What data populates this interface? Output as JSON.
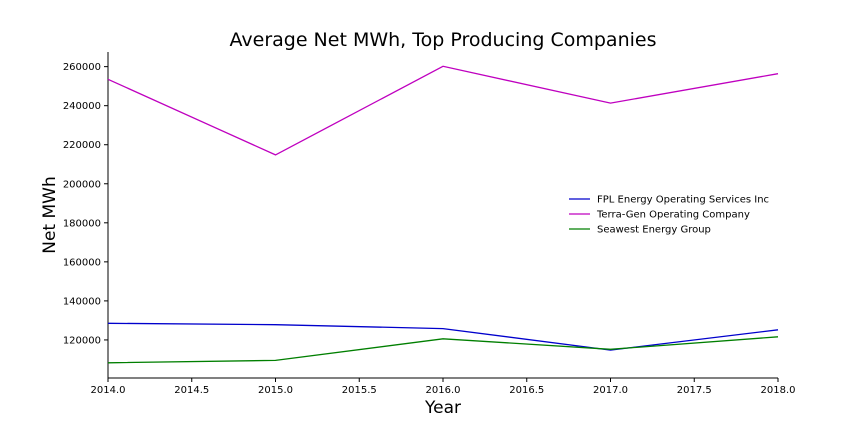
{
  "chart_data": {
    "type": "line",
    "title": "Average Net MWh, Top Producing Companies",
    "xlabel": "Year",
    "ylabel": "Net MWh",
    "x": [
      2014,
      2015,
      2016,
      2017,
      2018
    ],
    "xlim": [
      2014,
      2018
    ],
    "ylim": [
      100500,
      267500
    ],
    "x_ticks": [
      2014.0,
      2014.5,
      2015.0,
      2015.5,
      2016.0,
      2016.5,
      2017.0,
      2017.5,
      2018.0
    ],
    "x_tick_labels": [
      "2014.0",
      "2014.5",
      "2015.0",
      "2015.5",
      "2016.0",
      "2016.5",
      "2017.0",
      "2017.5",
      "2018.0"
    ],
    "y_ticks": [
      120000,
      140000,
      160000,
      180000,
      200000,
      220000,
      240000,
      260000
    ],
    "y_tick_labels": [
      "120000",
      "140000",
      "160000",
      "180000",
      "200000",
      "220000",
      "240000",
      "260000"
    ],
    "grid": false,
    "legend_position": "center-right",
    "series": [
      {
        "name": "FPL Energy Operating Services Inc",
        "color": "#0000cc",
        "values": [
          128500,
          127800,
          125800,
          114800,
          125200
        ]
      },
      {
        "name": "Terra-Gen Operating Company",
        "color": "#bf00bf",
        "values": [
          253500,
          214800,
          260200,
          241300,
          256400
        ]
      },
      {
        "name": "Seawest Energy Group",
        "color": "#007f00",
        "values": [
          108300,
          109500,
          120600,
          115200,
          121600
        ]
      }
    ]
  }
}
